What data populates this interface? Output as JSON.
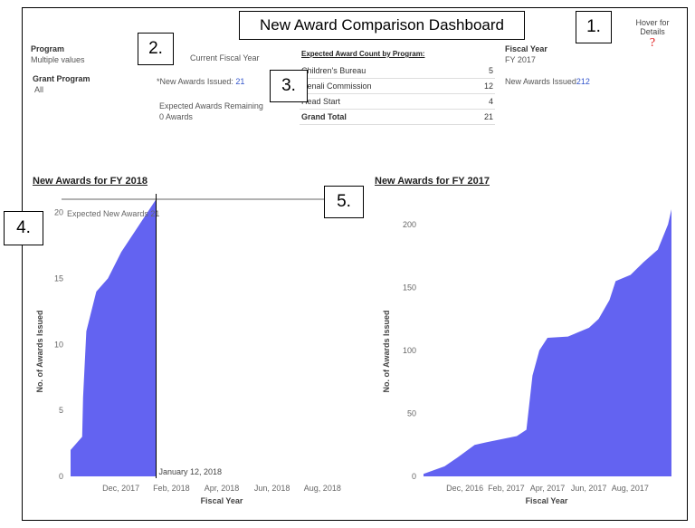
{
  "dashboard": {
    "title": "New Award Comparison Dashboard",
    "hover_details": "Hover for Details",
    "hover_icon": "?",
    "callouts": [
      "1.",
      "2.",
      "3.",
      "4.",
      "5."
    ]
  },
  "filters": {
    "program_label": "Program",
    "program_value": "Multiple values",
    "grant_program_label": "Grant Program",
    "grant_program_value": "All"
  },
  "current_fy": {
    "label": "Current Fiscal Year",
    "issued_label": "*New Awards Issued:",
    "issued_value": "21",
    "remaining_label": "Expected Awards Remaining",
    "remaining_value": "0 Awards"
  },
  "expected_table": {
    "title": "Expected Award Count by Program:",
    "rows": [
      {
        "program": "Children's Bureau",
        "count": "5"
      },
      {
        "program": "Denali Commission",
        "count": "12"
      },
      {
        "program": "Head Start",
        "count": "4"
      }
    ],
    "total_label": "Grand Total",
    "total_value": "21"
  },
  "previous_fy": {
    "label": "Fiscal Year",
    "value": "FY 2017",
    "issued_label": "New Awards Issued",
    "issued_value": "212"
  },
  "colors": {
    "area": "#5b5bf0",
    "link": "#3355cc",
    "callout_border": "#000000"
  },
  "chart_data": [
    {
      "type": "area",
      "title": "New Awards for FY 2018",
      "xlabel": "Fiscal Year",
      "ylabel": "No. of Awards Issued",
      "x_ticks": [
        "Dec, 2017",
        "Feb, 2018",
        "Apr, 2018",
        "Jun, 2018",
        "Aug, 2018"
      ],
      "y_ticks": [
        "0",
        "5",
        "10",
        "15",
        "20"
      ],
      "ylim": [
        0,
        21
      ],
      "reference_line_label": "Expected New Awards 21",
      "reference_value": 21,
      "current_date_label": "January 12, 2018",
      "series": [
        {
          "x": [
            "2017-10-01",
            "2017-10-15",
            "2017-10-16",
            "2017-10-20",
            "2017-11-01",
            "2017-11-15",
            "2017-12-01",
            "2018-01-12"
          ],
          "values": [
            2,
            3,
            6,
            11,
            14,
            15,
            17,
            21
          ]
        }
      ]
    },
    {
      "type": "area",
      "title": "New Awards for FY 2017",
      "xlabel": "Fiscal Year",
      "ylabel": "No. of Awards Issued",
      "x_ticks": [
        "Dec, 2016",
        "Feb, 2017",
        "Apr, 2017",
        "Jun, 2017",
        "Aug, 2017"
      ],
      "y_ticks": [
        "0",
        "50",
        "100",
        "150",
        "200"
      ],
      "ylim": [
        0,
        220
      ],
      "series": [
        {
          "x": [
            "2016-10-01",
            "2016-11-01",
            "2016-11-20",
            "2016-12-15",
            "2017-01-01",
            "2017-02-15",
            "2017-03-01",
            "2017-03-10",
            "2017-03-20",
            "2017-04-01",
            "2017-05-01",
            "2017-06-01",
            "2017-06-15",
            "2017-07-01",
            "2017-07-10",
            "2017-08-01",
            "2017-08-20",
            "2017-09-10",
            "2017-09-25",
            "2017-09-30"
          ],
          "values": [
            2,
            8,
            15,
            25,
            27,
            32,
            37,
            80,
            100,
            110,
            111,
            118,
            125,
            140,
            155,
            160,
            170,
            180,
            200,
            212
          ]
        }
      ]
    }
  ]
}
